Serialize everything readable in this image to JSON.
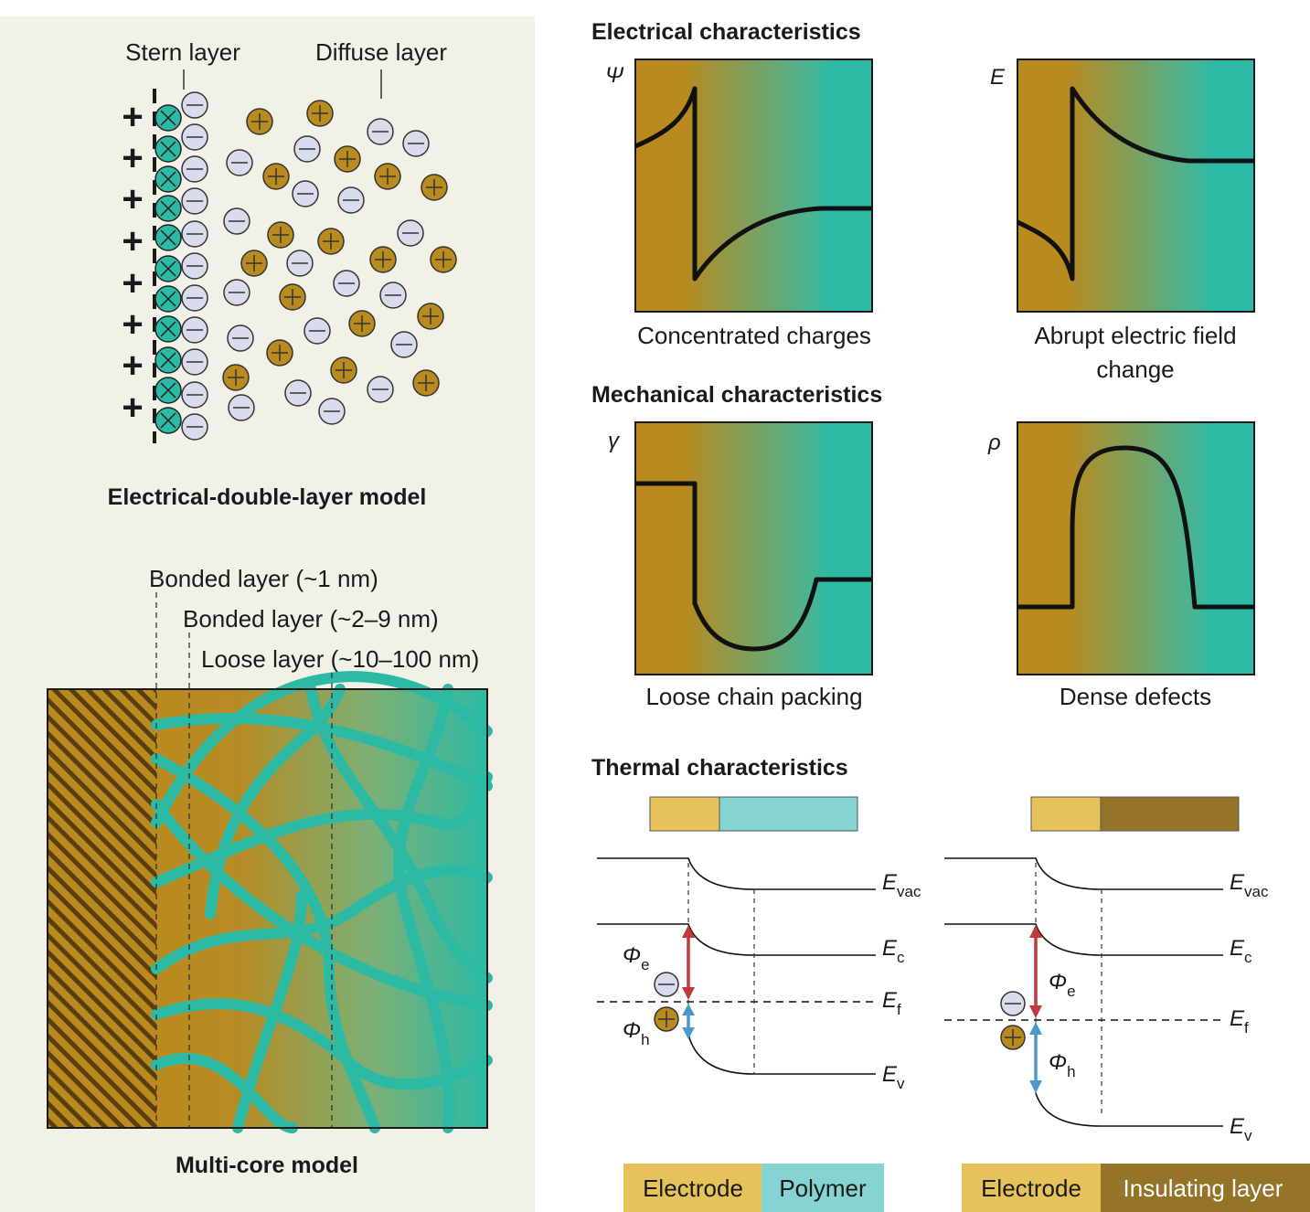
{
  "left_panel": {
    "stern_label": "Stern layer",
    "diffuse_label": "Diffuse layer",
    "edl_title": "Electrical-double-layer model",
    "bonded1_label": "Bonded layer (~1 nm)",
    "bonded2_label": "Bonded layer (~2–9 nm)",
    "loose_label": "Loose layer (~10–100 nm)",
    "multicore_title": "Multi-core model",
    "plus_symbol": "+"
  },
  "electrical": {
    "heading": "Electrical characteristics",
    "psi_symbol": "Ψ",
    "psi_caption": "Concentrated charges",
    "e_symbol": "E",
    "e_caption_1": "Abrupt electric field",
    "e_caption_2": "change"
  },
  "mechanical": {
    "heading": "Mechanical characteristics",
    "gamma_symbol": "γ",
    "gamma_caption": "Loose chain packing",
    "rho_symbol": "ρ",
    "rho_caption": "Dense defects"
  },
  "thermal": {
    "heading": "Thermal characteristics",
    "e_main": "E",
    "phi": "Φ",
    "sub_vac": "vac",
    "sub_c": "c",
    "sub_f": "f",
    "sub_v": "v",
    "sub_e": "e",
    "sub_h": "h"
  },
  "legend": {
    "electrode_1": "Electrode",
    "polymer": "Polymer",
    "electrode_2": "Electrode",
    "insulating": "Insulating layer"
  },
  "colors": {
    "panel_bg": "#f2f1e8",
    "gold": "#b98a1e",
    "teal": "#2dbaa4",
    "electrode_light": "#e6c35a",
    "polymer_light": "#85d3d2",
    "insulating_dark": "#95742a",
    "anion_fill": "#d9dcec",
    "red_arrow": "#c0393b",
    "blue_arrow": "#4a98cc"
  }
}
